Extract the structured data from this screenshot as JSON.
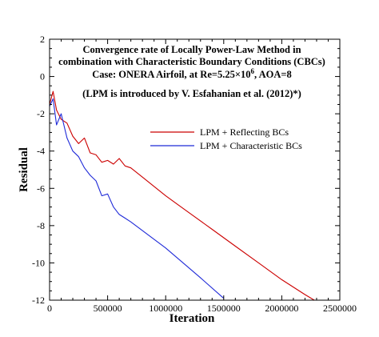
{
  "chart_data": {
    "type": "line",
    "title_lines": [
      "Convergence rate of Locally Power-Law Method in",
      "combination with Characteristic Boundary Conditions (CBCs)",
      "Case: ONERA Airfoil, at Re=5.25×10",
      "(LPM is introduced by V. Esfahanian et al. (2012)*)"
    ],
    "title_superscript": "6",
    "title_suffix": ", AOA=8",
    "xlabel": "Iteration",
    "ylabel": "Residual",
    "xlim": [
      0,
      2500000
    ],
    "ylim": [
      -12,
      2
    ],
    "x_ticks": [
      0,
      500000,
      1000000,
      1500000,
      2000000,
      2500000
    ],
    "y_ticks": [
      2,
      0,
      -2,
      -4,
      -6,
      -8,
      -10,
      -12
    ],
    "grid": false,
    "legend_position": "upper-right",
    "series": [
      {
        "name": "LPM + Reflecting BCs",
        "color": "#cc0000",
        "x": [
          0,
          30000,
          60000,
          100000,
          150000,
          200000,
          250000,
          300000,
          350000,
          400000,
          450000,
          500000,
          550000,
          600000,
          650000,
          700000,
          800000,
          1000000,
          1200000,
          1400000,
          1600000,
          1800000,
          2000000,
          2200000,
          2280000
        ],
        "y": [
          -1.5,
          -0.8,
          -1.8,
          -2.3,
          -2.5,
          -3.2,
          -3.6,
          -3.3,
          -4.1,
          -4.2,
          -4.6,
          -4.5,
          -4.7,
          -4.4,
          -4.8,
          -4.9,
          -5.4,
          -6.4,
          -7.3,
          -8.2,
          -9.1,
          -10.0,
          -10.9,
          -11.7,
          -12.0
        ]
      },
      {
        "name": "LPM + Characteristic BCs",
        "color": "#1f2ad8",
        "x": [
          0,
          30000,
          60000,
          100000,
          150000,
          200000,
          250000,
          300000,
          350000,
          400000,
          450000,
          500000,
          550000,
          600000,
          650000,
          700000,
          1000000,
          1300000,
          1500000
        ],
        "y": [
          -1.6,
          -1.2,
          -2.6,
          -2.0,
          -3.3,
          -4.0,
          -4.3,
          -4.9,
          -5.3,
          -5.6,
          -6.4,
          -6.3,
          -7.0,
          -7.4,
          -7.6,
          -7.8,
          -9.2,
          -10.8,
          -11.9
        ]
      }
    ]
  }
}
